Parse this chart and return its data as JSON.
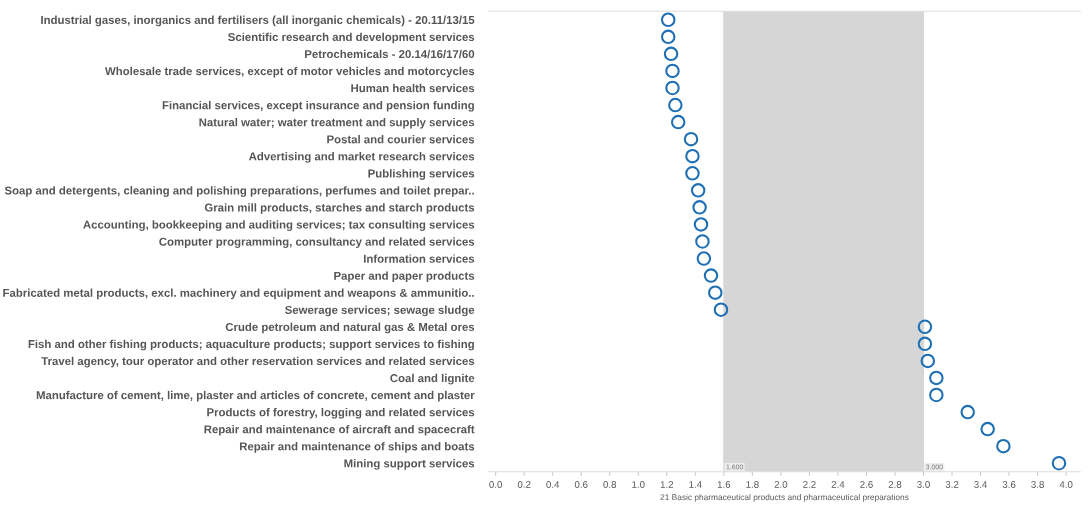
{
  "chart_data": {
    "type": "scatter",
    "orientation": "horizontal",
    "marker": "circle",
    "grid": false,
    "xlabel": "21 Basic pharmaceutical products and pharmaceutical preparations",
    "categories": [
      "Industrial gases, inorganics and fertilisers (all inorganic chemicals) - 20.11/13/15",
      "Scientific research and development services",
      "Petrochemicals - 20.14/16/17/60",
      "Wholesale trade services, except of motor vehicles and motorcycles",
      "Human health services",
      "Financial services, except insurance and pension funding",
      "Natural water; water treatment and supply services",
      "Postal and courier services",
      "Advertising and market research services",
      "Publishing services",
      "Soap and detergents, cleaning and polishing preparations, perfumes and toilet prepar..",
      "Grain mill products, starches and starch products",
      "Accounting, bookkeeping and auditing services; tax consulting services",
      "Computer programming, consultancy and related services",
      "Information services",
      "Paper and paper products",
      "Fabricated metal products, excl. machinery and equipment and weapons & ammunitio..",
      "Sewerage services; sewage sludge",
      "Crude petroleum and natural gas & Metal ores",
      "Fish and other fishing products; aquaculture products; support services to fishing",
      "Travel agency, tour operator and other reservation services and related services",
      "Coal and lignite",
      "Manufacture of cement, lime, plaster and articles of concrete, cement and plaster",
      "Products of forestry, logging and related services",
      "Repair and maintenance of aircraft and spacecraft",
      "Repair and maintenance of ships and boats",
      "Mining support services"
    ],
    "series": [
      {
        "color": "#1f6fb4",
        "values": [
          1.21,
          1.21,
          1.23,
          1.24,
          1.24,
          1.26,
          1.28,
          1.37,
          1.38,
          1.38,
          1.42,
          1.43,
          1.44,
          1.45,
          1.46,
          1.51,
          1.54,
          1.58,
          3.01,
          3.01,
          3.03,
          3.09,
          3.09,
          3.31,
          3.45,
          3.56,
          3.95
        ]
      }
    ],
    "xlim": [
      -0.05,
      4.1
    ],
    "xticks": [
      {
        "value": 0,
        "label": "0.0"
      },
      {
        "value": 0.2,
        "label": "0.2"
      },
      {
        "value": 0.4,
        "label": "0.4"
      },
      {
        "value": 0.6,
        "label": "0.6"
      },
      {
        "value": 0.8,
        "label": "0.8"
      },
      {
        "value": 1,
        "label": "1.0"
      },
      {
        "value": 1.2,
        "label": "1.2"
      },
      {
        "value": 1.4,
        "label": "1.4"
      },
      {
        "value": 1.6,
        "label": "1.6"
      },
      {
        "value": 1.8,
        "label": "1.8"
      },
      {
        "value": 2,
        "label": "2.0"
      },
      {
        "value": 2.2,
        "label": "2.2"
      },
      {
        "value": 2.4,
        "label": "2.4"
      },
      {
        "value": 2.6,
        "label": "2.6"
      },
      {
        "value": 2.8,
        "label": "2.8"
      },
      {
        "value": 3,
        "label": "3.0"
      },
      {
        "value": 3.2,
        "label": "3.2"
      },
      {
        "value": 3.4,
        "label": "3.4"
      },
      {
        "value": 3.6,
        "label": "3.6"
      },
      {
        "value": 3.8,
        "label": "3.8"
      },
      {
        "value": 4,
        "label": "4.0"
      }
    ],
    "bands": [
      {
        "axis": "x",
        "from": 1.6,
        "to": 3.0,
        "color": "#d6d6d6"
      }
    ],
    "ref_lines": [
      {
        "axis": "x",
        "value": 1.6,
        "label": "1.600",
        "color": "#d6d6d6"
      },
      {
        "axis": "x",
        "value": 3.0,
        "label": "3.000",
        "color": "#d6d6d6"
      }
    ]
  }
}
